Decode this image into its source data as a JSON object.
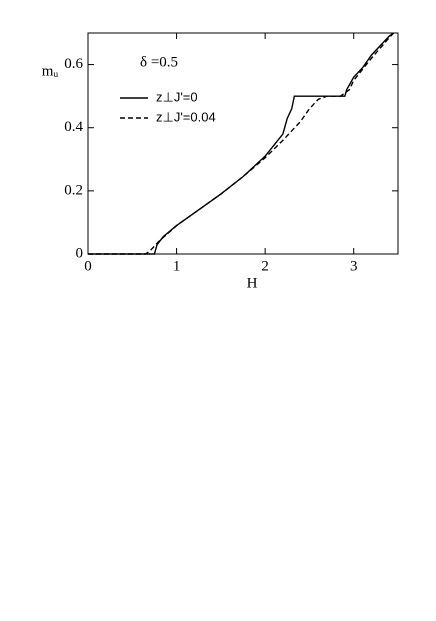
{
  "chart_data": {
    "type": "line",
    "annotation": "δ =0.5",
    "x_label": "H",
    "y_label": "mᵤ",
    "xlim": [
      0,
      3.5
    ],
    "ylim": [
      0,
      0.7
    ],
    "xticks": [
      0,
      1,
      2,
      3
    ],
    "yticks": [
      0,
      0.2,
      0.4,
      0.6
    ],
    "series": [
      {
        "name": "z⊥J'=0",
        "color": "#000000",
        "dash": "solid",
        "x": [
          0,
          0.5,
          0.75,
          0.78,
          0.85,
          1.0,
          1.25,
          1.5,
          1.75,
          2.0,
          2.2,
          2.25,
          2.3,
          2.33,
          2.6,
          2.9,
          2.92,
          3.0,
          3.1,
          3.2,
          3.3,
          3.4,
          3.45
        ],
        "values": [
          0,
          0,
          0,
          0.03,
          0.055,
          0.09,
          0.14,
          0.19,
          0.245,
          0.31,
          0.38,
          0.43,
          0.46,
          0.5,
          0.5,
          0.5,
          0.52,
          0.56,
          0.59,
          0.63,
          0.66,
          0.69,
          0.7
        ]
      },
      {
        "name": "z⊥J'=0.04",
        "color": "#000000",
        "dash": "dashed",
        "x": [
          0,
          0.5,
          0.65,
          0.7,
          0.8,
          1.0,
          1.25,
          1.5,
          1.75,
          2.0,
          2.2,
          2.4,
          2.5,
          2.6,
          2.7,
          2.85,
          2.95,
          3.0,
          3.2,
          3.4,
          3.45
        ],
        "values": [
          0,
          0,
          0,
          0.01,
          0.04,
          0.09,
          0.14,
          0.19,
          0.245,
          0.305,
          0.36,
          0.42,
          0.46,
          0.49,
          0.5,
          0.5,
          0.52,
          0.55,
          0.62,
          0.685,
          0.7
        ]
      }
    ]
  }
}
